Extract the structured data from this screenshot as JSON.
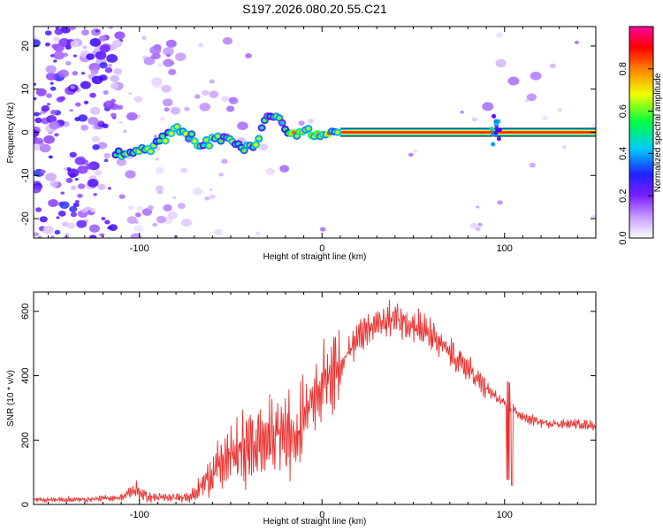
{
  "figure_title": "S197.2026.080.20.55.C21",
  "chart_data": [
    {
      "type": "heatmap",
      "title": "S197.2026.080.20.55.C21",
      "xlabel": "Height of straight line (km)",
      "ylabel": "Frequency (Hz)",
      "xlim": [
        -158,
        150
      ],
      "ylim": [
        -24.5,
        24.5
      ],
      "xticks": [
        -100,
        0,
        100
      ],
      "yticks": [
        -20,
        -10,
        0,
        10,
        20
      ],
      "xtick_labels": [
        "-100",
        "0",
        "100"
      ],
      "ytick_labels": [
        "-20",
        "-10",
        "0",
        "10",
        "20"
      ],
      "colorbar": {
        "label": "Normalized spectral amplitude",
        "range": [
          0,
          1
        ],
        "ticks": [
          0.0,
          0.2,
          0.4,
          0.6,
          0.8
        ],
        "tick_labels": [
          "0.0",
          "0.2",
          "0.4",
          "0.6",
          "0.8"
        ],
        "colors": [
          "#ffffff",
          "#9a3bff",
          "#2020ff",
          "#00c8ff",
          "#00ff40",
          "#f0ff00",
          "#ff8000",
          "#ff0000",
          "#ff00a0"
        ]
      },
      "ridge": {
        "description": "dominant frequency trace vs height",
        "x": [
          -113,
          -105,
          -95,
          -85,
          -78,
          -72,
          -66,
          -60,
          -54,
          -48,
          -42,
          -36,
          -32,
          -28,
          -24,
          -18,
          -12,
          -6,
          0,
          4,
          10,
          20,
          40,
          90,
          95,
          100,
          150
        ],
        "y": [
          -5,
          -5,
          -4,
          -1,
          1,
          -1,
          -3,
          -2,
          -1,
          -2,
          -4,
          -3,
          2,
          4,
          3,
          0,
          0,
          0,
          -1,
          0,
          0,
          0,
          0,
          0,
          -1,
          0,
          0
        ]
      }
    },
    {
      "type": "line",
      "xlabel": "Height of straight line (km)",
      "ylabel": "SNR (10 * v/v)",
      "xlim": [
        -158,
        150
      ],
      "ylim": [
        0,
        660
      ],
      "xticks": [
        -100,
        0,
        100
      ],
      "yticks": [
        0,
        200,
        400,
        600
      ],
      "xtick_labels": [
        "-100",
        "0",
        "100"
      ],
      "ytick_labels": [
        "0",
        "200",
        "400",
        "600"
      ],
      "series": [
        {
          "name": "SNR",
          "color": "#e8302e",
          "envelope_x": [
            -158,
            -130,
            -110,
            -102,
            -95,
            -80,
            -70,
            -60,
            -50,
            -40,
            -30,
            -20,
            -12,
            -8,
            0,
            10,
            20,
            30,
            40,
            50,
            60,
            70,
            80,
            90,
            100,
            104,
            110,
            120,
            130,
            140,
            150
          ],
          "envelope_y": [
            15,
            15,
            22,
            45,
            22,
            20,
            30,
            100,
            150,
            180,
            200,
            230,
            220,
            310,
            380,
            440,
            520,
            560,
            580,
            560,
            520,
            470,
            420,
            360,
            310,
            300,
            270,
            255,
            250,
            250,
            245
          ]
        }
      ]
    }
  ]
}
